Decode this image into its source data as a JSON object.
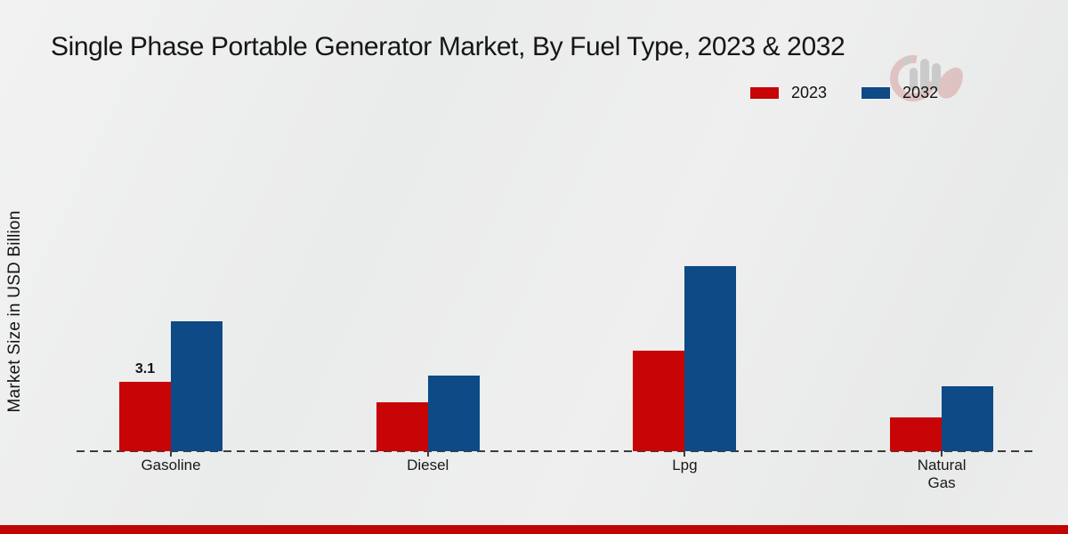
{
  "title": "Single Phase Portable Generator Market, By Fuel Type, 2023 & 2032",
  "ylabel": "Market Size in USD Billion",
  "legend": {
    "items": [
      {
        "label": "2023",
        "color": "#c70506"
      },
      {
        "label": "2032",
        "color": "#0d4a86"
      }
    ]
  },
  "colors": {
    "bar_2023": "#c70506",
    "bar_2032": "#0d4a86",
    "footer_band": "#c00404",
    "baseline": "#3c3c3c"
  },
  "chart_data": {
    "type": "bar",
    "categories": [
      "Gasoline",
      "Diesel",
      "Lpg",
      "Natural Gas"
    ],
    "series": [
      {
        "name": "2023",
        "color": "#c70506",
        "values": [
          3.1,
          2.2,
          4.5,
          1.5
        ]
      },
      {
        "name": "2032",
        "color": "#0d4a86",
        "values": [
          5.8,
          3.4,
          8.3,
          2.9
        ]
      }
    ],
    "title": "Single Phase Portable Generator Market, By Fuel Type, 2023 & 2032",
    "xlabel": "",
    "ylabel": "Market Size in USD Billion",
    "ylim": [
      0,
      10
    ],
    "grid": false,
    "legend_position": "top-right",
    "axis_style": "dashed-baseline-only",
    "annotations": [
      {
        "category": "Gasoline",
        "series": "2023",
        "text": "3.1"
      }
    ]
  }
}
